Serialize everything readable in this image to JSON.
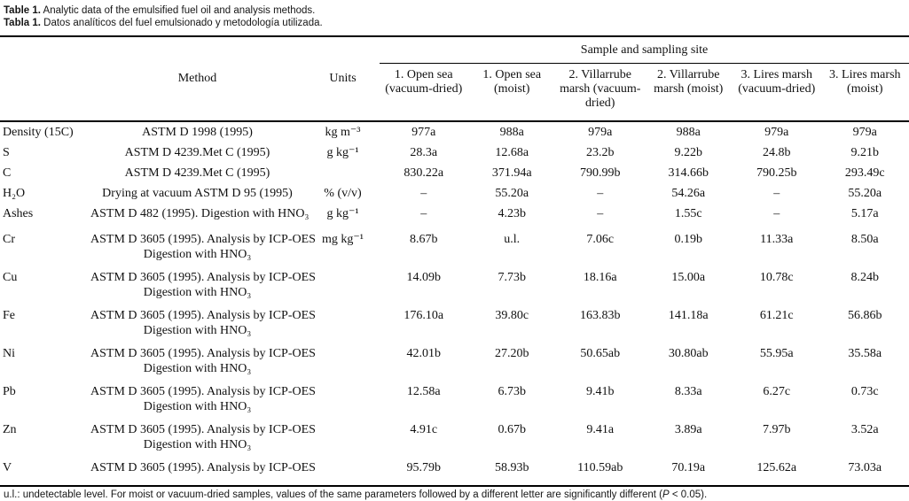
{
  "caption": {
    "en_label": "Table 1.",
    "en_text": " Analytic data of the emulsified fuel oil and analysis methods.",
    "es_label": "Tabla 1.",
    "es_text": " Datos analíticos del fuel emulsionado y metodología utilizada."
  },
  "table": {
    "group_header": "Sample and sampling site",
    "headers": {
      "parameter": "",
      "method": "Method",
      "units": "Units",
      "samples": [
        "1. Open sea (vacuum-dried)",
        "1. Open sea (moist)",
        "2. Villarrube marsh (vacuum-dried)",
        "2. Villarrube marsh (moist)",
        "3. Lires marsh (vacuum-dried)",
        "3. Lires marsh (moist)"
      ]
    },
    "rows": [
      {
        "parameter": "Density (15C)",
        "method": [
          "ASTM D 1998 (1995)"
        ],
        "units": "kg m⁻³",
        "values": [
          "977a",
          "988a",
          "979a",
          "988a",
          "979a",
          "979a"
        ]
      },
      {
        "parameter": "S",
        "method": [
          "ASTM D 4239.Met C (1995)"
        ],
        "units": "g kg⁻¹",
        "values": [
          "28.3a",
          "12.68a",
          "23.2b",
          "9.22b",
          "24.8b",
          "9.21b"
        ]
      },
      {
        "parameter": "C",
        "method": [
          "ASTM D 4239.Met C (1995)"
        ],
        "units": "",
        "values": [
          "830.22a",
          "371.94a",
          "790.99b",
          "314.66b",
          "790.25b",
          "293.49c"
        ]
      },
      {
        "parameter": "H₂O",
        "method": [
          "Drying at vacuum ASTM D 95 (1995)"
        ],
        "units": "% (v/v)",
        "values": [
          "–",
          "55.20a",
          "–",
          "54.26a",
          "–",
          "55.20a"
        ]
      },
      {
        "parameter": "Ashes",
        "method": [
          "ASTM D 482 (1995). Digestion with HNO₃"
        ],
        "units": "g kg⁻¹",
        "values": [
          "–",
          "4.23b",
          "–",
          "1.55c",
          "–",
          "5.17a"
        ]
      },
      {
        "parameter": "Cr",
        "method": [
          "ASTM D 3605 (1995). Analysis by ICP-OES",
          "Digestion with HNO₃"
        ],
        "units": "mg kg⁻¹",
        "values": [
          "8.67b",
          "u.l.",
          "7.06c",
          "0.19b",
          "11.33a",
          "8.50a"
        ]
      },
      {
        "parameter": "Cu",
        "method": [
          "ASTM D 3605 (1995). Analysis by ICP-OES",
          "Digestion with HNO₃"
        ],
        "units": "",
        "values": [
          "14.09b",
          "7.73b",
          "18.16a",
          "15.00a",
          "10.78c",
          "8.24b"
        ]
      },
      {
        "parameter": "Fe",
        "method": [
          "ASTM D 3605 (1995). Analysis by ICP-OES",
          "Digestion with HNO₃"
        ],
        "units": "",
        "values": [
          "176.10a",
          "39.80c",
          "163.83b",
          "141.18a",
          "61.21c",
          "56.86b"
        ]
      },
      {
        "parameter": "Ni",
        "method": [
          "ASTM D 3605 (1995). Analysis by ICP-OES",
          "Digestion with HNO₃"
        ],
        "units": "",
        "values": [
          "42.01b",
          "27.20b",
          "50.65ab",
          "30.80ab",
          "55.95a",
          "35.58a"
        ]
      },
      {
        "parameter": "Pb",
        "method": [
          "ASTM D 3605 (1995). Analysis by ICP-OES",
          "Digestion with HNO₃"
        ],
        "units": "",
        "values": [
          "12.58a",
          "6.73b",
          "9.41b",
          "8.33a",
          "6.27c",
          "0.73c"
        ]
      },
      {
        "parameter": "Zn",
        "method": [
          "ASTM D 3605 (1995). Analysis by ICP-OES",
          "Digestion with HNO₃"
        ],
        "units": "",
        "values": [
          "4.91c",
          "0.67b",
          "9.41a",
          "3.89a",
          "7.97b",
          "3.52a"
        ]
      },
      {
        "parameter": "V",
        "method": [
          "ASTM D 3605 (1995). Analysis by ICP-OES"
        ],
        "units": "",
        "values": [
          "95.79b",
          "58.93b",
          "110.59ab",
          "70.19a",
          "125.62a",
          "73.03a"
        ]
      }
    ]
  },
  "footnote": {
    "pre": "u.l.: undetectable level. For moist or vacuum-dried samples, values of the same parameters followed by a different letter are significantly different (",
    "p_symbol": "P",
    "post": " < 0.05)."
  },
  "colors": {
    "text": "#111111",
    "rule": "#000000",
    "background": "#ffffff"
  }
}
